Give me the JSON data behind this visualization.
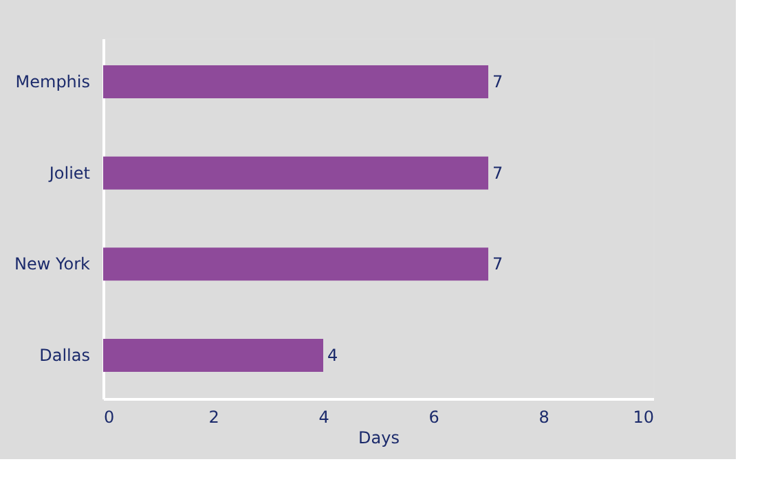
{
  "chart_data": {
    "type": "bar",
    "orientation": "horizontal",
    "categories": [
      "Memphis",
      "Joliet",
      "New York",
      "Dallas"
    ],
    "values": [
      7,
      7,
      7,
      4
    ],
    "color": "#8e4a9a",
    "xlabel": "Days",
    "xlim": [
      0,
      10
    ],
    "xticks": [
      0,
      2,
      4,
      6,
      8,
      10
    ],
    "data_labels": true
  }
}
